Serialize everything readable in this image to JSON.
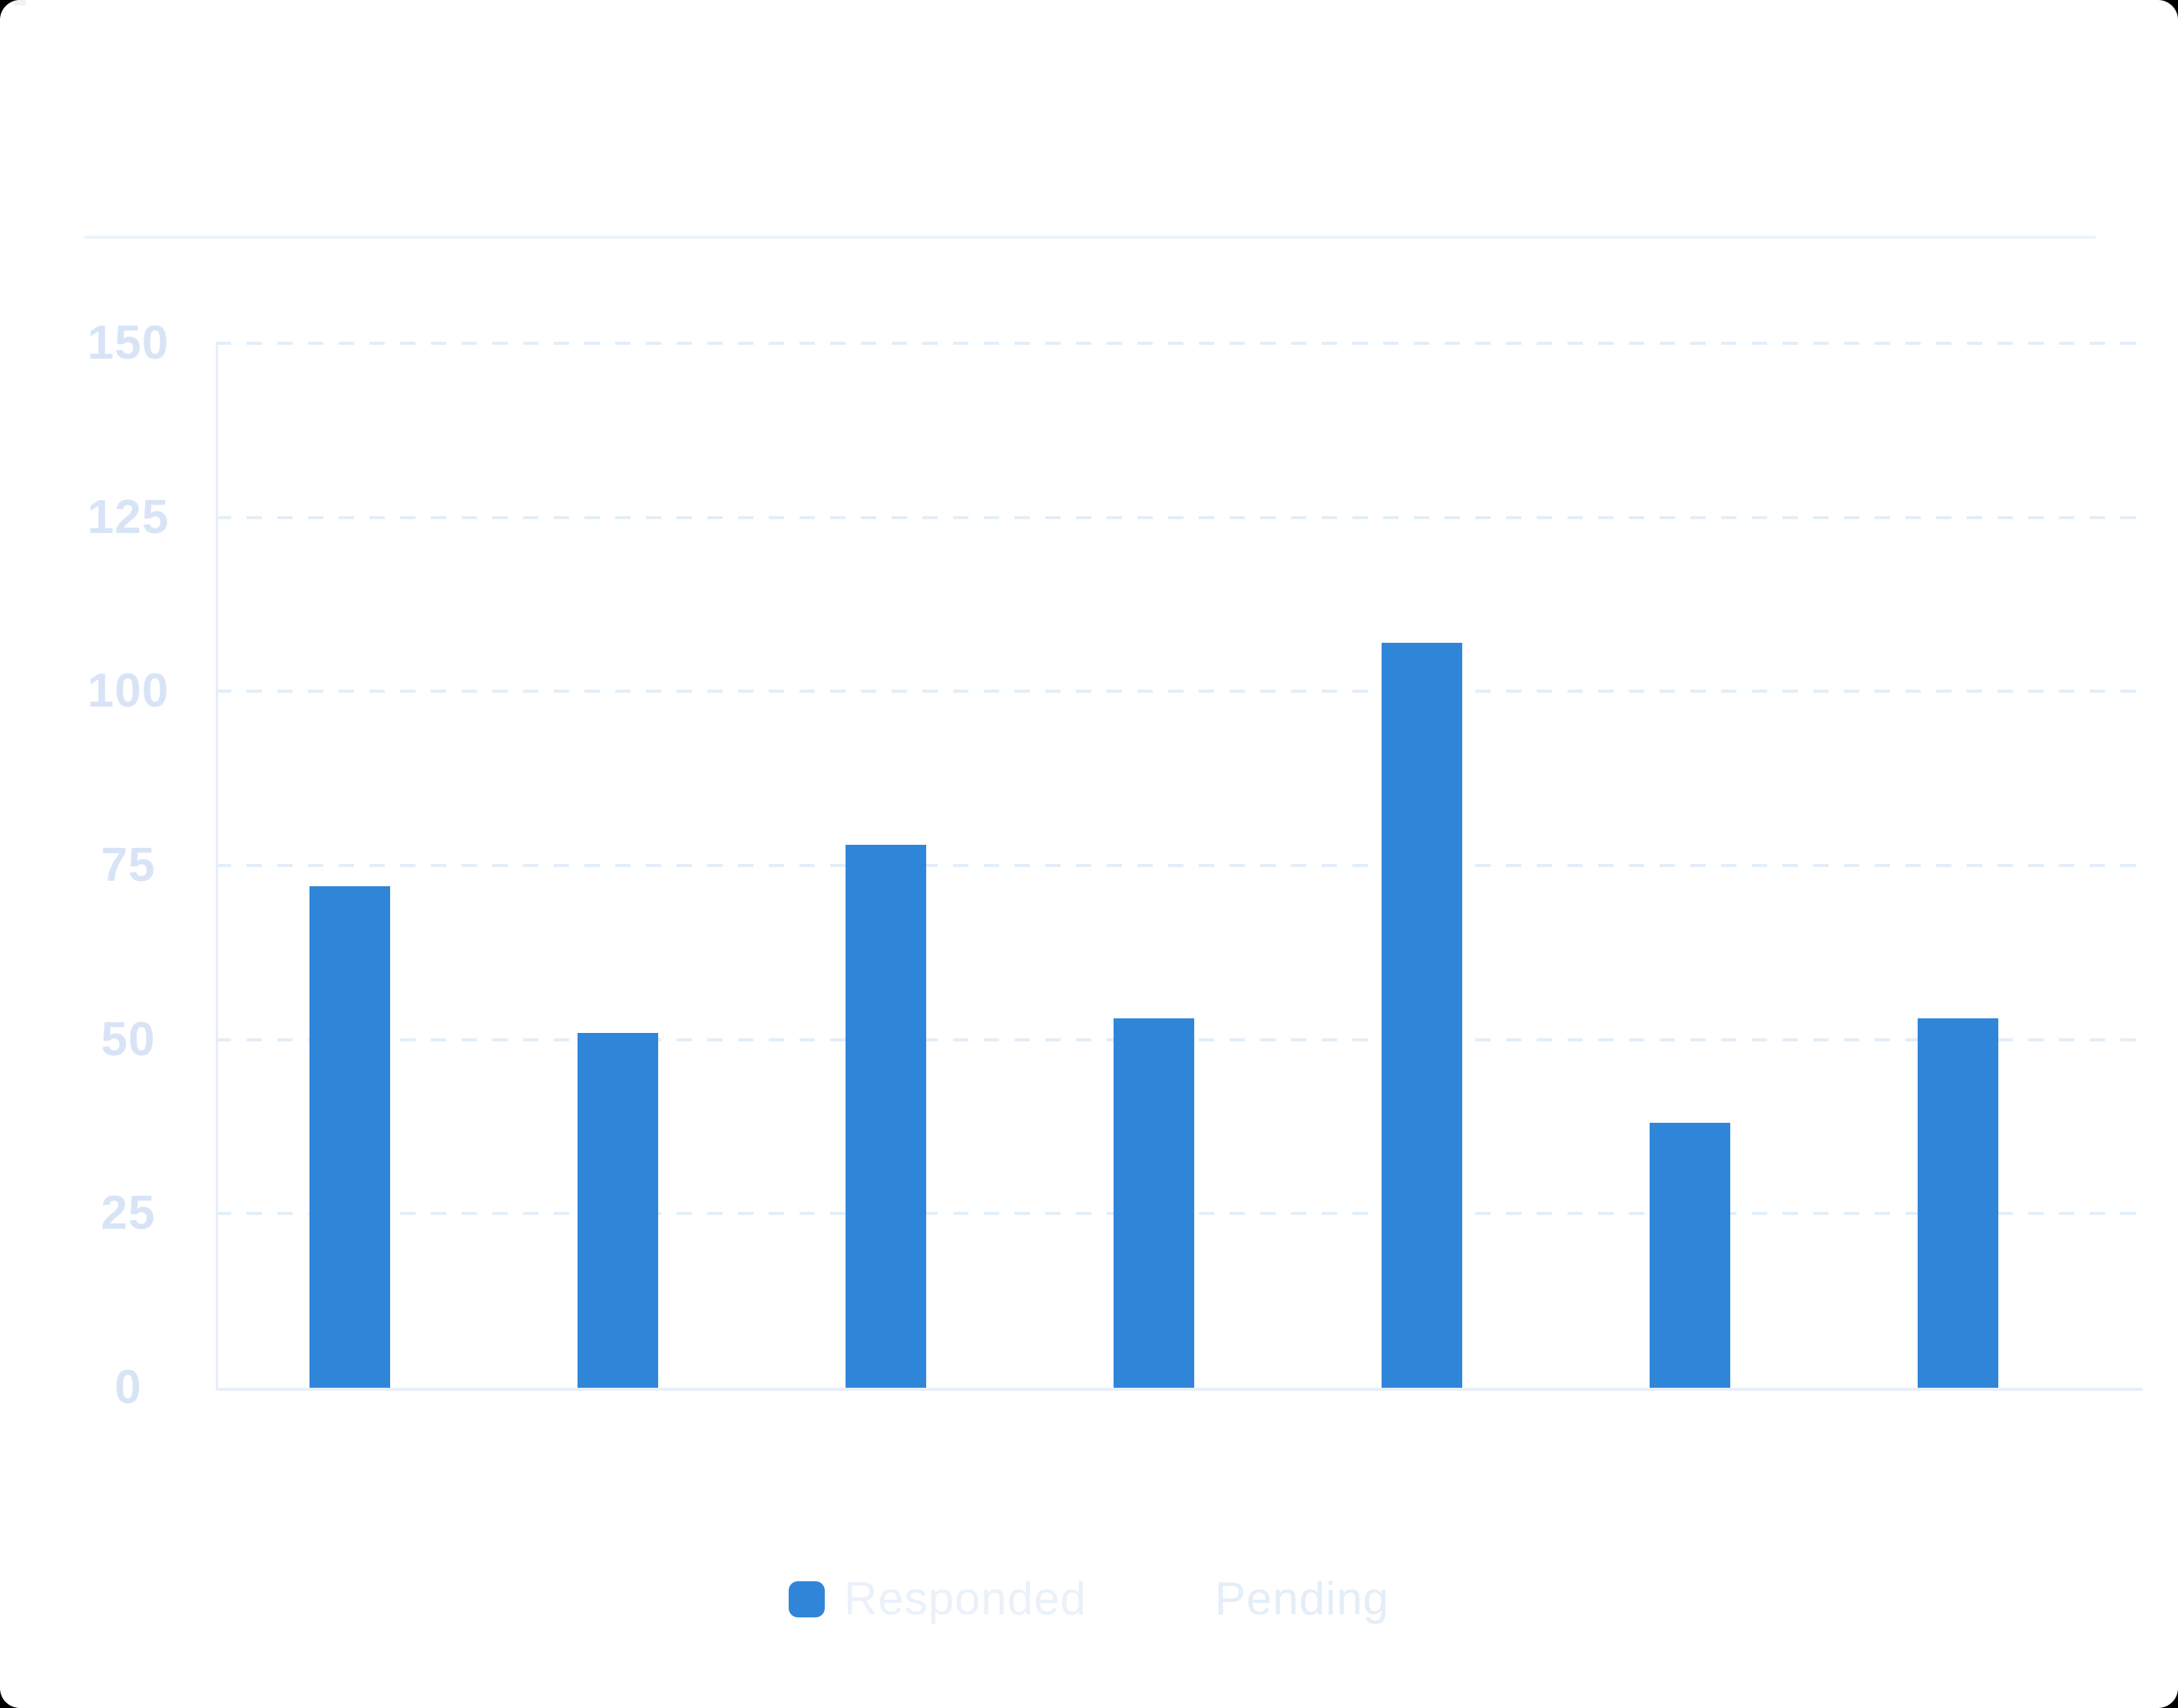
{
  "colors": {
    "bar_blue": "#2f86d9",
    "tick_label": "#d8e4f6",
    "gridline": "#e2eef8",
    "axis_line": "#e8eef9",
    "divider": "#ecf3f8",
    "legend_responded_text": "#eaf1fa",
    "legend_pending_text": "#e3eef8",
    "outside_corners": "#000000",
    "background": "#ffffff"
  },
  "chart_data": {
    "type": "bar",
    "title": "",
    "xlabel": "",
    "ylabel": "",
    "ylim": [
      0,
      150
    ],
    "yticks": [
      0,
      25,
      50,
      75,
      100,
      125,
      150
    ],
    "ytick_labels": [
      "0",
      "25",
      "50",
      "75",
      "100",
      "125",
      "150"
    ],
    "grid": "dashed horizontal gridlines, solid left and bottom axis lines",
    "legend_position": "bottom center",
    "bar_count": 7,
    "series": [
      {
        "name": "Responded",
        "color": "#2f86d9",
        "values": [
          72,
          51,
          78,
          53,
          107,
          38,
          53
        ]
      },
      {
        "name": "Pending",
        "color": "#ffffff",
        "values": []
      }
    ]
  },
  "legend": {
    "items": [
      {
        "label": "Responded",
        "swatch_color": "#2f86d9",
        "text_color": "#eaf1fa"
      },
      {
        "label": "Pending",
        "swatch_color": "transparent",
        "text_color": "#e3eef8"
      }
    ]
  }
}
